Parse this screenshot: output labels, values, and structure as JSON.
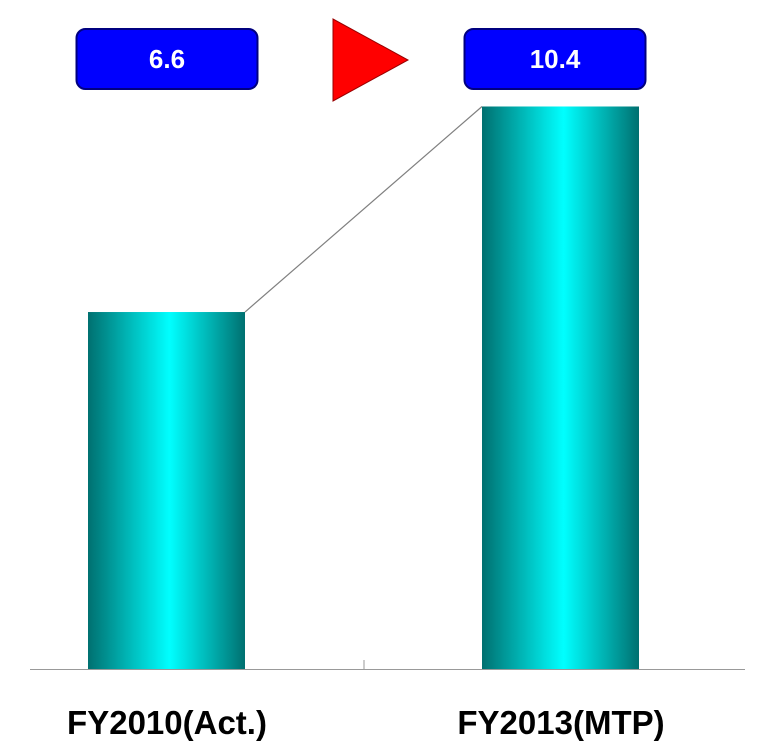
{
  "colors": {
    "bar_edge": "#007070",
    "bar_highlight": "#00ffff",
    "label_box_fill": "#0000ff",
    "label_box_border": "#000080",
    "arrow_fill": "#ff0000",
    "arrow_border": "#990000",
    "axis": "#999999",
    "connector": "#808080"
  },
  "chart_data": {
    "type": "bar",
    "categories": [
      "FY2010(Act.)",
      "FY2013(MTP)"
    ],
    "values": [
      6.6,
      10.4
    ],
    "value_labels": [
      "6.6",
      "10.4"
    ],
    "ylim": [
      0,
      11.5
    ],
    "grid": false,
    "legend": "none",
    "connector_line": true,
    "growth_arrow": "right-pointing"
  }
}
